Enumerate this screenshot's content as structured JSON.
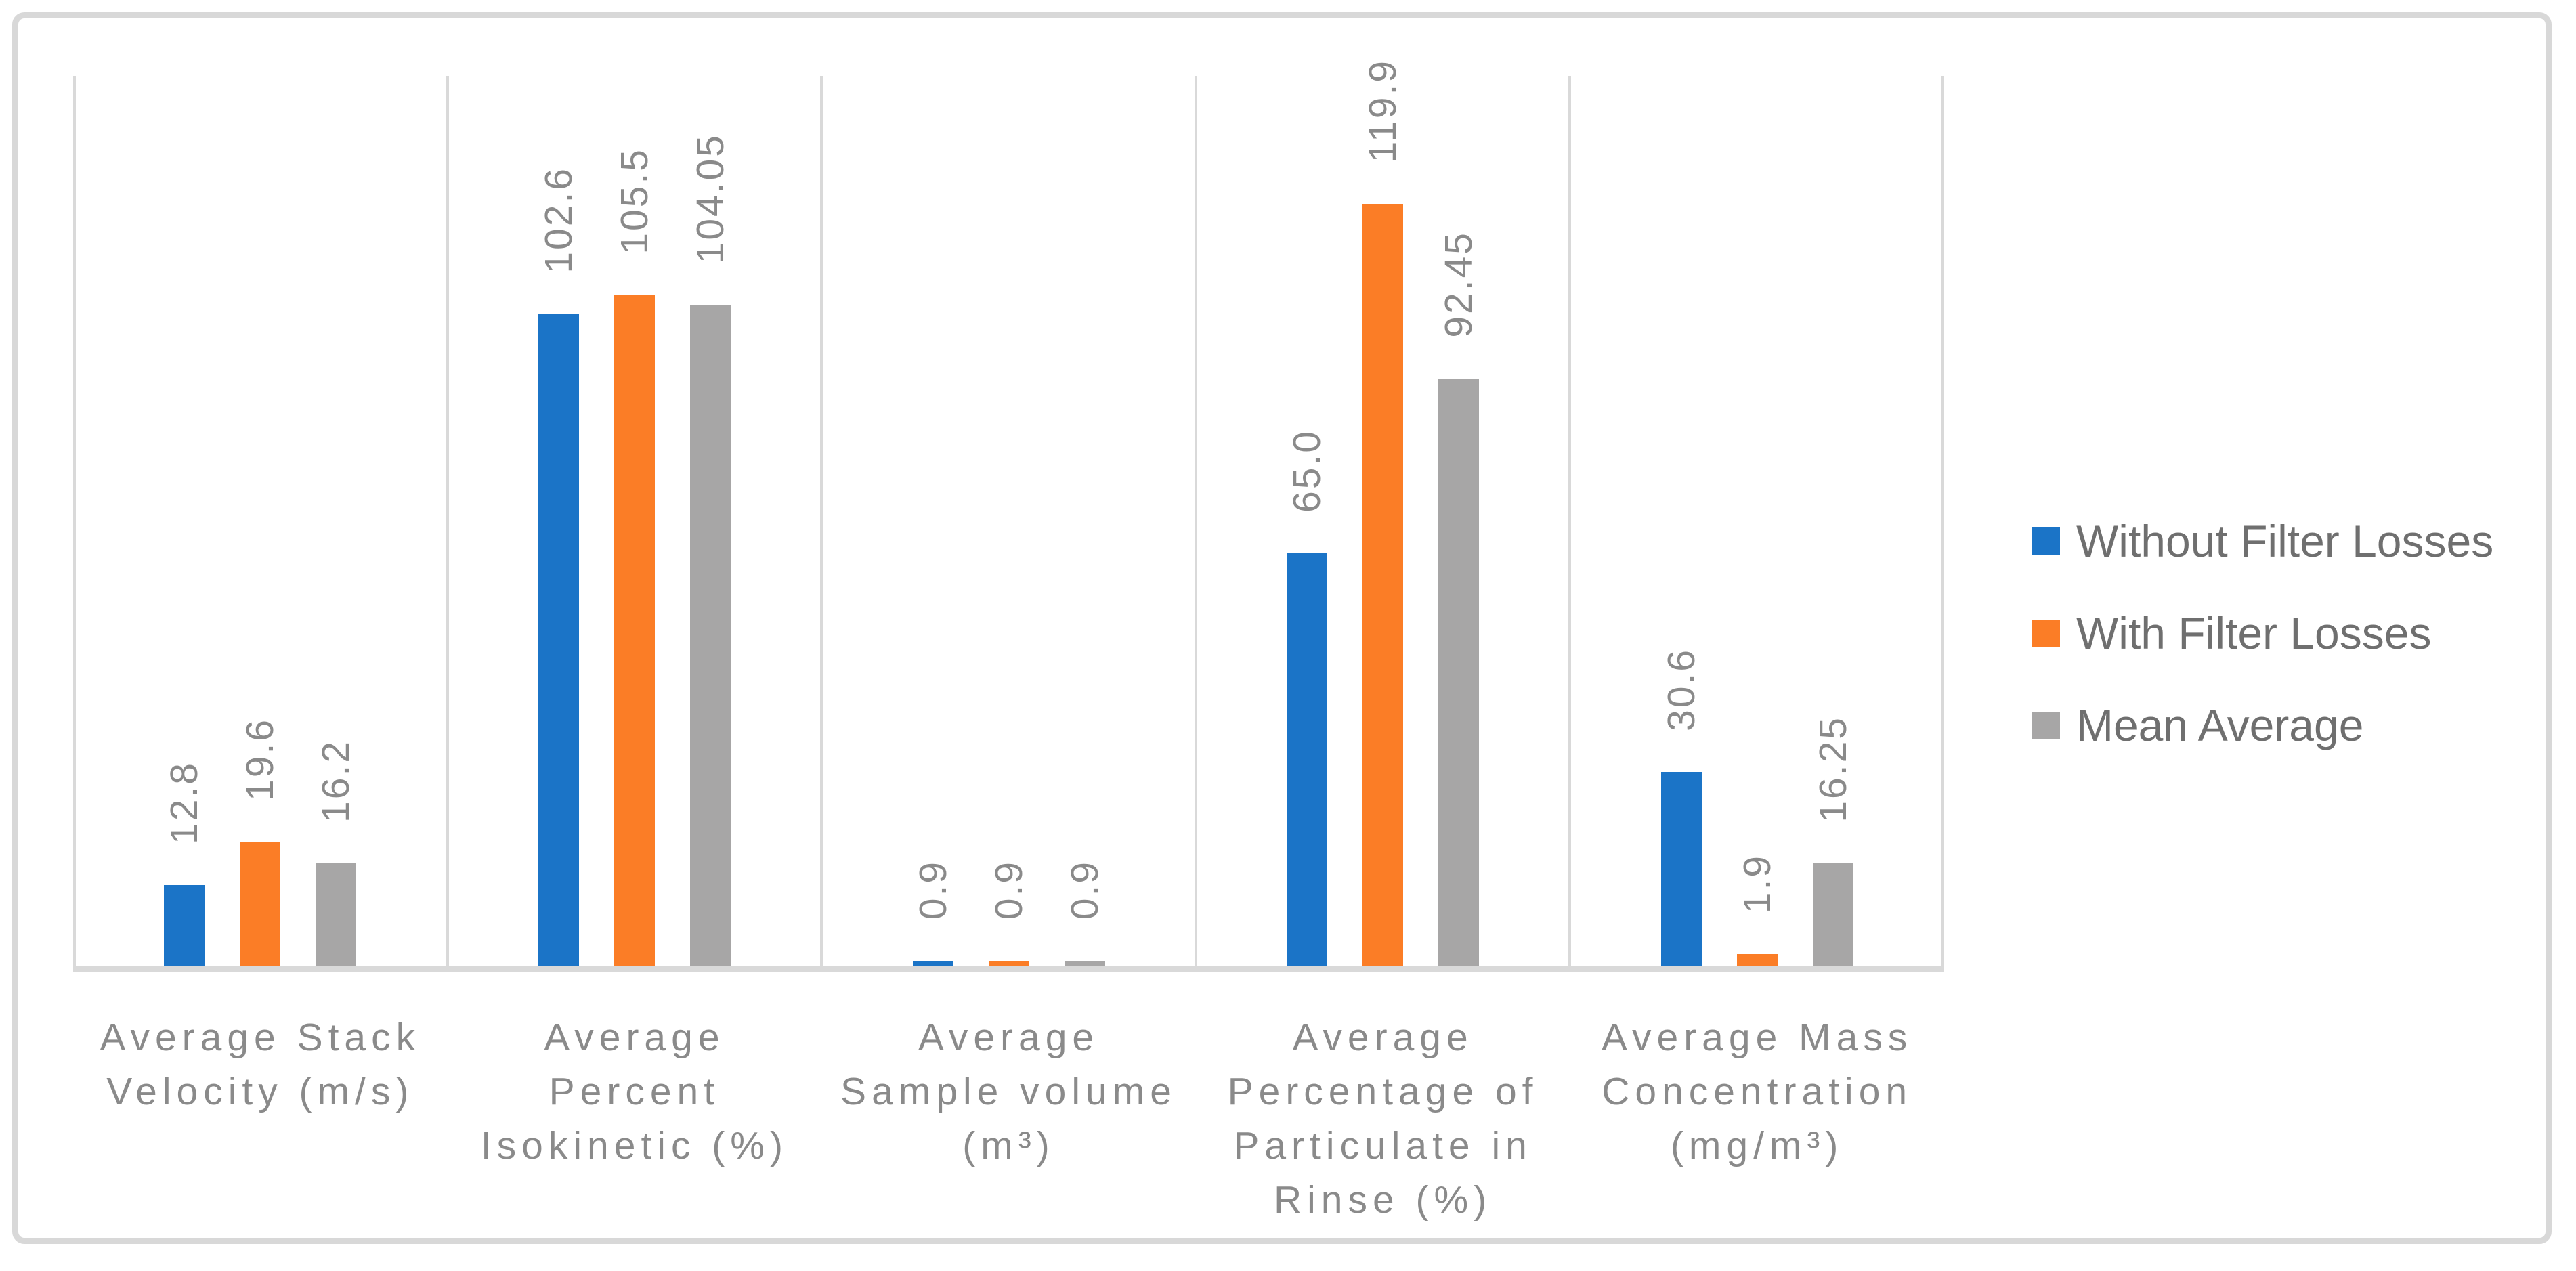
{
  "chart_data": {
    "type": "bar",
    "title": "",
    "xlabel": "",
    "ylabel": "",
    "ylim": [
      0,
      140
    ],
    "grid": "vertical category separator lines only",
    "legend_position": "right",
    "categories": [
      "Average Stack Velocity (m/s)",
      "Average Percent Isokinetic (%)",
      "Average Sample volume (m³)",
      "Average Percentage of Particulate in Rinse (%)",
      "Average Mass Concentration (mg/m³)"
    ],
    "categories_lines": [
      [
        "Average Stack",
        "Velocity (m/s)"
      ],
      [
        "Average",
        "Percent",
        "Isokinetic (%)"
      ],
      [
        "Average",
        "Sample volume",
        "(m³)"
      ],
      [
        "Average",
        "Percentage of",
        "Particulate in",
        "Rinse (%)"
      ],
      [
        "Average Mass",
        "Concentration",
        "(mg/m³)"
      ]
    ],
    "series": [
      {
        "name": "Without Filter Losses",
        "color": "#1B74C7",
        "values": [
          12.8,
          102.6,
          0.9,
          65.0,
          30.6
        ],
        "labels": [
          "12.8",
          "102.6",
          "0.9",
          "65.0",
          "30.6"
        ]
      },
      {
        "name": "With Filter Losses",
        "color": "#FB7D26",
        "values": [
          19.6,
          105.5,
          0.9,
          119.9,
          1.9
        ],
        "labels": [
          "19.6",
          "105.5",
          "0.9",
          "119.9",
          "1.9"
        ]
      },
      {
        "name": "Mean Average",
        "color": "#A7A6A6",
        "values": [
          16.2,
          104.05,
          0.9,
          92.45,
          16.25
        ],
        "labels": [
          "16.2",
          "104.05",
          "0.9",
          "92.45",
          "16.25"
        ]
      }
    ],
    "colors": {
      "axis_line": "#D9D9D9",
      "separator_line": "#D9D9D9",
      "data_label_text": "#8A8A8A",
      "category_label_text": "#8A8A8A",
      "legend_text": "#6F6F6F",
      "outer_border": "#D8D8D8",
      "background": "#FFFFFF"
    }
  }
}
